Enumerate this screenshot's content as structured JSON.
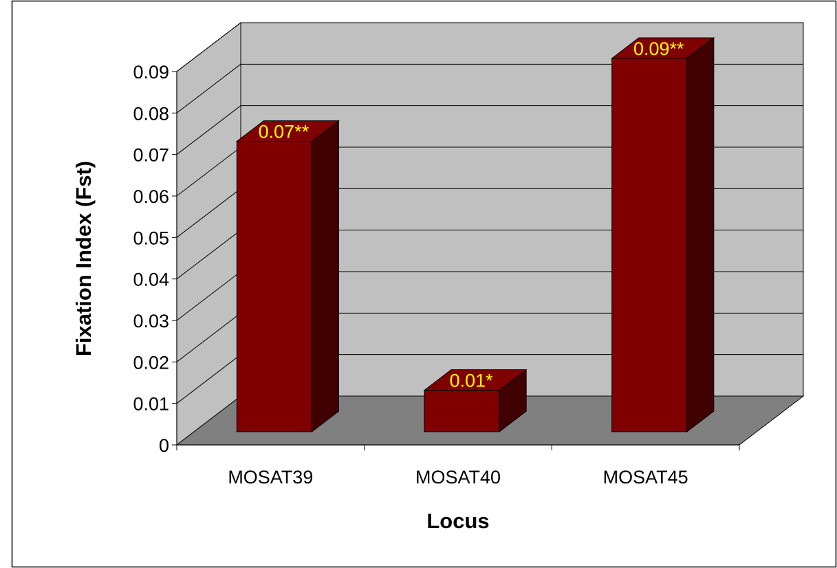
{
  "chart_data": {
    "type": "bar",
    "categories": [
      "MOSAT39",
      "MOSAT40",
      "MOSAT45"
    ],
    "values": [
      0.07,
      0.01,
      0.09
    ],
    "data_labels": [
      "0.07**",
      "0.01*",
      "0.09**"
    ],
    "title": "",
    "xlabel": "Locus",
    "ylabel": "Fixation Index (Fst)",
    "ylim": [
      0,
      0.09
    ],
    "yticks": [
      "0",
      "0.01",
      "0.02",
      "0.03",
      "0.04",
      "0.05",
      "0.06",
      "0.07",
      "0.08",
      "0.09"
    ],
    "grid": true,
    "legend": "none",
    "style": "3d",
    "colors": {
      "bar_front": "#800000",
      "bar_top": "#800000",
      "bar_side": "#400000",
      "wall": "#c0c0c0",
      "floor": "#808080",
      "data_label": "#ffff00"
    }
  }
}
